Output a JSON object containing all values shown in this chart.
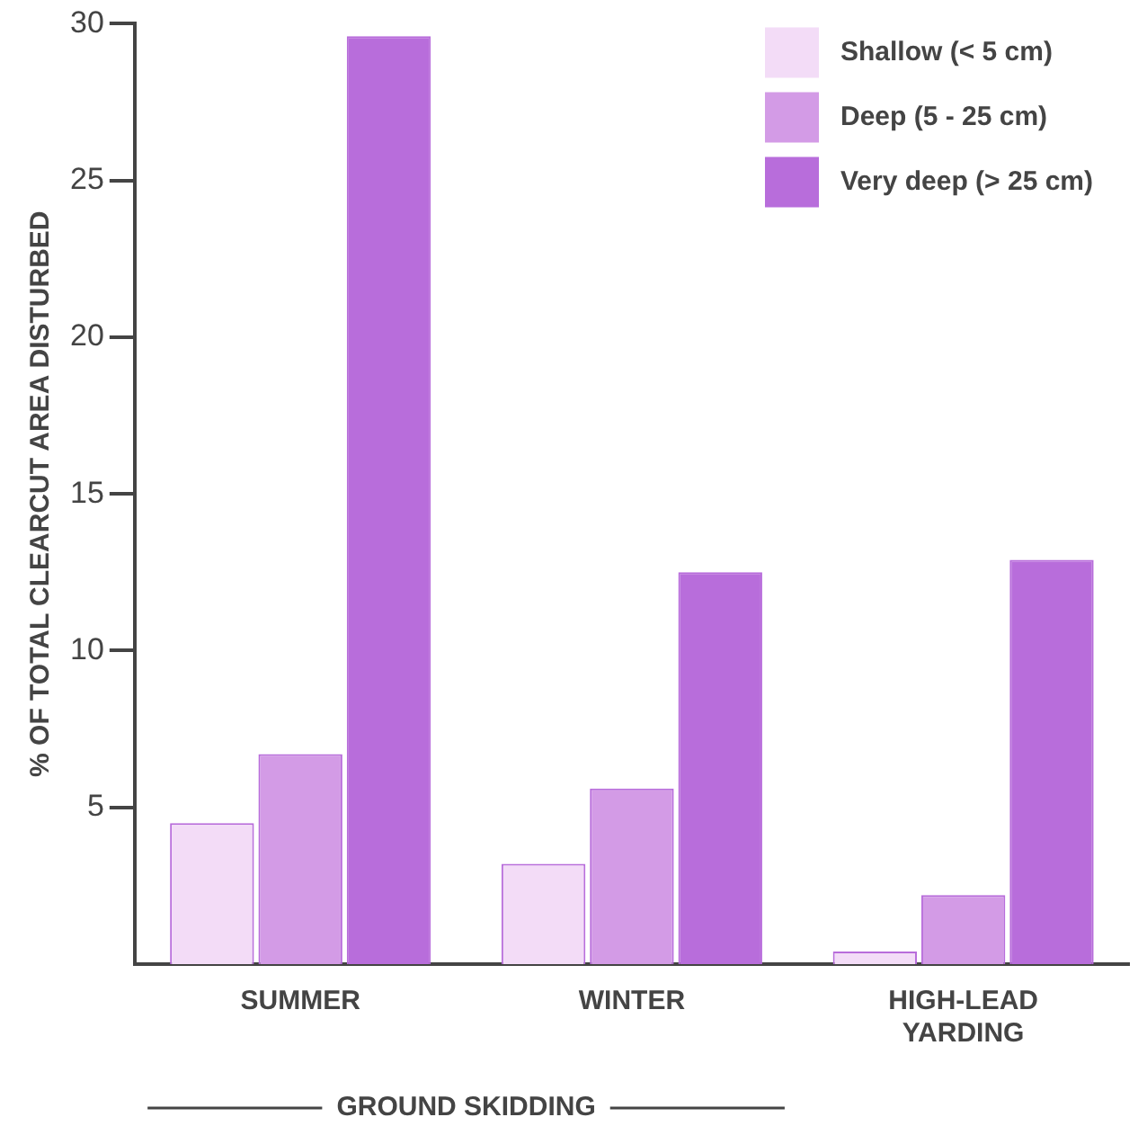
{
  "chart_data": {
    "type": "bar",
    "ylabel": "% OF TOTAL CLEARCUT AREA DISTURBED",
    "categories": [
      "SUMMER",
      "WINTER",
      "HIGH-LEAD\nYARDING"
    ],
    "series": [
      {
        "name": "Shallow (< 5 cm)",
        "color": "#f3dcf7",
        "values": [
          4.5,
          3.2,
          0.4
        ]
      },
      {
        "name": "Deep (5 - 25 cm)",
        "color": "#d39be6",
        "values": [
          6.7,
          5.6,
          2.2
        ]
      },
      {
        "name": "Very deep (> 25 cm)",
        "color": "#b86ddb",
        "values": [
          29.6,
          12.5,
          12.9
        ]
      }
    ],
    "ylim": [
      0,
      30
    ],
    "yticks": [
      5,
      10,
      15,
      20,
      25,
      30
    ],
    "grid": false,
    "legend": "top right",
    "annotations": [
      "GROUND SKIDDING"
    ]
  }
}
